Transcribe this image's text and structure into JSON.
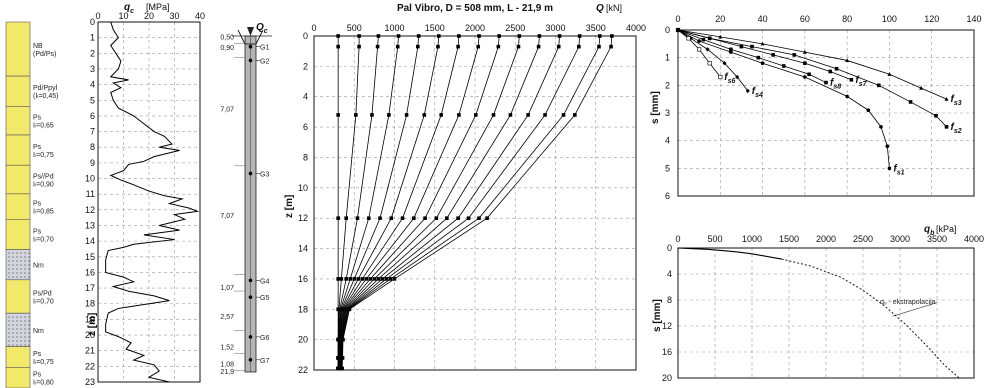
{
  "chart_data": [
    {
      "type": "table",
      "name": "soil_profile",
      "layers": [
        {
          "label": "NB\n(Pd/Ps)",
          "top": 0,
          "bottom": 3.4,
          "fill": "#f2e86a"
        },
        {
          "label": "Pd/Ppyl\n(Iₗ=0,45)",
          "top": 3.4,
          "bottom": 5.3,
          "fill": "#f2e86a"
        },
        {
          "label": "Ps\nIₗ=0,65",
          "top": 5.3,
          "bottom": 7.1,
          "fill": "#f2e86a"
        },
        {
          "label": "Ps\nIₗ=0,75",
          "top": 7.1,
          "bottom": 9.0,
          "fill": "#f2e86a"
        },
        {
          "label": "Ps//Pd\nIₗ=0,90",
          "top": 9.0,
          "bottom": 10.8,
          "fill": "#f2e86a"
        },
        {
          "label": "Ps\nIₗ=0,85",
          "top": 10.8,
          "bottom": 12.4,
          "fill": "#f2e86a"
        },
        {
          "label": "Ps\nIₗ=0,70",
          "top": 12.4,
          "bottom": 14.3,
          "fill": "#f2e86a"
        },
        {
          "label": "Nm",
          "top": 14.3,
          "bottom": 16.2,
          "fill": "#b8b8c8"
        },
        {
          "label": "Ps/Pd\nIₗ=0,70",
          "top": 16.2,
          "bottom": 18.3,
          "fill": "#f2e86a"
        },
        {
          "label": "Nm",
          "top": 18.3,
          "bottom": 20.4,
          "fill": "#b8b8c8"
        },
        {
          "label": "Ps\nIₗ=0,75",
          "top": 20.4,
          "bottom": 21.7,
          "fill": "#f2e86a"
        },
        {
          "label": "Ps\nIₗ=0,80",
          "top": 21.7,
          "bottom": 23,
          "fill": "#f2e86a"
        }
      ]
    },
    {
      "type": "line",
      "name": "cpt",
      "xlabel": "q",
      "xlabel_sub": "c",
      "xunit": "[MPa]",
      "ylabel": "z [m]",
      "xlim": [
        0,
        40
      ],
      "ylim": [
        0,
        23
      ],
      "xticks": [
        0,
        10,
        20,
        30,
        40
      ],
      "yticks": [
        0,
        1,
        2,
        3,
        4,
        5,
        6,
        7,
        8,
        9,
        10,
        11,
        12,
        13,
        14,
        15,
        16,
        17,
        18,
        19,
        20,
        21,
        22,
        23
      ],
      "series": [
        {
          "points": [
            [
              5,
              0
            ],
            [
              6,
              0.5
            ],
            [
              8,
              1
            ],
            [
              5,
              1.5
            ],
            [
              7,
              2
            ],
            [
              9,
              2.5
            ],
            [
              8,
              3
            ],
            [
              5,
              3.5
            ],
            [
              12,
              3.7
            ],
            [
              6,
              3.9
            ],
            [
              9,
              4.2
            ],
            [
              5,
              4.5
            ],
            [
              6,
              5
            ],
            [
              8,
              5.5
            ],
            [
              14,
              6
            ],
            [
              18,
              6.5
            ],
            [
              22,
              7
            ],
            [
              26,
              7.3
            ],
            [
              29,
              7.8
            ],
            [
              24,
              8
            ],
            [
              32,
              8.2
            ],
            [
              22,
              8.6
            ],
            [
              18,
              8.9
            ],
            [
              12,
              9.1
            ],
            [
              10,
              9.5
            ],
            [
              5,
              9.8
            ],
            [
              9,
              10.1
            ],
            [
              14,
              10.4
            ],
            [
              20,
              10.8
            ],
            [
              26,
              11.1
            ],
            [
              33,
              11.3
            ],
            [
              28,
              11.6
            ],
            [
              36,
              11.9
            ],
            [
              39,
              12.1
            ],
            [
              30,
              12.3
            ],
            [
              34,
              12.6
            ],
            [
              24,
              13
            ],
            [
              32,
              13.3
            ],
            [
              18,
              13.6
            ],
            [
              30,
              13.9
            ],
            [
              14,
              14.2
            ],
            [
              10,
              14.4
            ],
            [
              4,
              14.6
            ],
            [
              3,
              15.2
            ],
            [
              3,
              16
            ],
            [
              10,
              16.3
            ],
            [
              14,
              16.6
            ],
            [
              6,
              16.9
            ],
            [
              12,
              17.2
            ],
            [
              22,
              17.5
            ],
            [
              28,
              17.8
            ],
            [
              20,
              18
            ],
            [
              8,
              18.3
            ],
            [
              4,
              18.6
            ],
            [
              3,
              19.3
            ],
            [
              3,
              19.8
            ],
            [
              8,
              20.1
            ],
            [
              13,
              20.5
            ],
            [
              11,
              20.9
            ],
            [
              18,
              21.3
            ],
            [
              14,
              21.6
            ],
            [
              22,
              21.9
            ],
            [
              24,
              22.3
            ],
            [
              20,
              22.7
            ],
            [
              28,
              23
            ]
          ]
        }
      ]
    },
    {
      "type": "diagram",
      "name": "pile",
      "label": "Q",
      "label_sub": "c",
      "depth_labels": [
        "0,50",
        "0,90",
        "7,07",
        "7,07",
        "1,07",
        "2,57",
        "1,52",
        "1,08",
        "21,9"
      ],
      "gauges": [
        "G1",
        "G2",
        "G3",
        "G4",
        "G5",
        "G6",
        "G7"
      ],
      "gauge_depths": [
        0.7,
        1.6,
        9.0,
        16.0,
        17.1,
        19.7,
        21.2
      ]
    },
    {
      "type": "line",
      "name": "load_distribution",
      "title": "Pal Vibro, D = 508 mm, L - 21,9 m",
      "xlabel": "Q",
      "xunit": "[kN]",
      "ylabel": "z [m]",
      "xlim": [
        0,
        4000
      ],
      "ylim": [
        0,
        22
      ],
      "xticks": [
        0,
        500,
        1000,
        1500,
        2000,
        2500,
        3000,
        3500,
        4000
      ],
      "yticks": [
        0,
        2,
        4,
        6,
        8,
        10,
        12,
        14,
        16,
        18,
        20,
        22
      ],
      "depths": [
        0,
        0.7,
        5.2,
        12,
        16,
        18,
        20,
        21.2,
        21.9
      ],
      "series": [
        {
          "values": [
            300,
            300,
            300,
            300,
            300,
            300,
            300,
            300,
            300
          ]
        },
        {
          "values": [
            560,
            560,
            520,
            400,
            340,
            310,
            300,
            300,
            300
          ]
        },
        {
          "values": [
            800,
            790,
            720,
            540,
            400,
            320,
            300,
            300,
            300
          ]
        },
        {
          "values": [
            1050,
            1040,
            930,
            680,
            450,
            330,
            305,
            300,
            300
          ]
        },
        {
          "values": [
            1300,
            1290,
            1150,
            820,
            500,
            340,
            310,
            305,
            300
          ]
        },
        {
          "values": [
            1550,
            1540,
            1370,
            960,
            550,
            350,
            315,
            310,
            305
          ]
        },
        {
          "values": [
            1800,
            1790,
            1580,
            1100,
            600,
            360,
            320,
            315,
            310
          ]
        },
        {
          "values": [
            2050,
            2040,
            1800,
            1240,
            650,
            370,
            325,
            320,
            315
          ]
        },
        {
          "values": [
            2300,
            2290,
            2010,
            1380,
            700,
            380,
            330,
            325,
            320
          ]
        },
        {
          "values": [
            2550,
            2540,
            2230,
            1520,
            750,
            390,
            335,
            330,
            325
          ]
        },
        {
          "values": [
            2800,
            2790,
            2440,
            1650,
            800,
            400,
            340,
            335,
            330
          ]
        },
        {
          "values": [
            3050,
            3040,
            2660,
            1790,
            850,
            410,
            345,
            340,
            335
          ]
        },
        {
          "values": [
            3300,
            3290,
            2870,
            1920,
            900,
            420,
            350,
            345,
            340
          ]
        },
        {
          "values": [
            3550,
            3540,
            3100,
            2050,
            950,
            430,
            355,
            350,
            345
          ]
        },
        {
          "values": [
            3700,
            3690,
            3240,
            2150,
            1000,
            440,
            360,
            355,
            350
          ]
        }
      ]
    },
    {
      "type": "line",
      "name": "settlement",
      "ylabel": "s [mm]",
      "xlim": [
        0,
        140
      ],
      "ylim": [
        0,
        6
      ],
      "xticks": [
        0,
        20,
        40,
        60,
        80,
        100,
        120,
        140
      ],
      "yticks": [
        0,
        1,
        2,
        3,
        4,
        5,
        6
      ],
      "series": [
        {
          "name": "f s1",
          "points": [
            [
              0,
              0
            ],
            [
              10,
              0.4
            ],
            [
              25,
              0.8
            ],
            [
              40,
              1.2
            ],
            [
              60,
              1.7
            ],
            [
              80,
              2.4
            ],
            [
              90,
              2.9
            ],
            [
              96,
              3.5
            ],
            [
              99,
              4.2
            ],
            [
              100,
              5.0
            ]
          ]
        },
        {
          "name": "f s2",
          "points": [
            [
              0,
              0
            ],
            [
              15,
              0.3
            ],
            [
              35,
              0.6
            ],
            [
              55,
              0.9
            ],
            [
              75,
              1.4
            ],
            [
              95,
              2.0
            ],
            [
              110,
              2.6
            ],
            [
              122,
              3.1
            ],
            [
              127,
              3.5
            ]
          ]
        },
        {
          "name": "f s3",
          "points": [
            [
              0,
              0
            ],
            [
              20,
              0.25
            ],
            [
              40,
              0.5
            ],
            [
              60,
              0.8
            ],
            [
              80,
              1.1
            ],
            [
              100,
              1.6
            ],
            [
              115,
              2.1
            ],
            [
              127,
              2.5
            ]
          ]
        },
        {
          "name": "f s4",
          "points": [
            [
              0,
              0
            ],
            [
              6,
              0.3
            ],
            [
              14,
              0.7
            ],
            [
              22,
              1.2
            ],
            [
              28,
              1.7
            ],
            [
              33,
              2.2
            ]
          ]
        },
        {
          "name": "f s6",
          "points": [
            [
              0,
              0
            ],
            [
              5,
              0.3
            ],
            [
              10,
              0.7
            ],
            [
              15,
              1.2
            ],
            [
              20,
              1.7
            ]
          ]
        },
        {
          "name": "f s7",
          "points": [
            [
              0,
              0
            ],
            [
              15,
              0.3
            ],
            [
              30,
              0.6
            ],
            [
              45,
              0.9
            ],
            [
              60,
              1.2
            ],
            [
              72,
              1.5
            ],
            [
              82,
              1.8
            ]
          ]
        },
        {
          "name": "f s8",
          "points": [
            [
              0,
              0
            ],
            [
              12,
              0.35
            ],
            [
              25,
              0.7
            ],
            [
              38,
              1.0
            ],
            [
              50,
              1.3
            ],
            [
              62,
              1.6
            ],
            [
              70,
              1.9
            ]
          ]
        }
      ]
    },
    {
      "type": "line",
      "name": "base_pressure",
      "xlabel": "q",
      "xlabel_sub": "b",
      "xunit": "[kPa]",
      "ylabel": "s [mm]",
      "xlim": [
        0,
        4000
      ],
      "ylim": [
        0,
        20
      ],
      "xticks": [
        0,
        500,
        1000,
        1500,
        2000,
        2500,
        3000,
        3500,
        4000
      ],
      "yticks": [
        0,
        4,
        8,
        12,
        16,
        20
      ],
      "annotation": "qₒ - ekstrapolacija",
      "series": [
        {
          "points": [
            [
              0,
              0
            ],
            [
              200,
              0.1
            ],
            [
              400,
              0.2
            ],
            [
              600,
              0.4
            ],
            [
              800,
              0.6
            ],
            [
              1000,
              0.9
            ],
            [
              1200,
              1.3
            ],
            [
              1400,
              1.7
            ]
          ]
        },
        {
          "points": [
            [
              1400,
              1.7
            ],
            [
              1800,
              2.8
            ],
            [
              2200,
              4.5
            ],
            [
              2500,
              6.5
            ],
            [
              2800,
              9
            ],
            [
              3100,
              12
            ],
            [
              3400,
              15.5
            ],
            [
              3600,
              18
            ],
            [
              3800,
              20
            ]
          ]
        }
      ]
    }
  ]
}
